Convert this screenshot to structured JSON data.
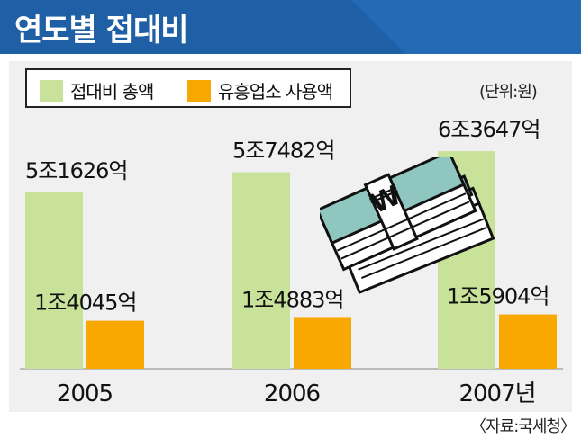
{
  "title": "연도별 접대비",
  "unit_label": "(단위:원)",
  "source_label": "〈자료:국세청〉",
  "colors": {
    "header": "#1f5fa6",
    "panel": "#f0f0f0",
    "entertainment": "#c9e29a",
    "entertainment_venue": "#f8a800"
  },
  "chart_data": {
    "type": "bar",
    "title": "연도별 접대비",
    "categories": [
      "2005",
      "2006",
      "2007년"
    ],
    "series": [
      {
        "name": "접대비 총액",
        "values": [
          51626,
          57482,
          63647
        ],
        "labels": [
          "5조1626억",
          "5조7482억",
          "6조3647억"
        ]
      },
      {
        "name": "유흥업소 사용액",
        "values": [
          14045,
          14883,
          15904
        ],
        "labels": [
          "1조4045억",
          "1조4883억",
          "1조5904억"
        ]
      }
    ],
    "unit": "억원",
    "legend_position": "top-left",
    "grid": false
  },
  "illustration": {
    "icon": "cash-bundle-icon",
    "symbol": "₩"
  }
}
